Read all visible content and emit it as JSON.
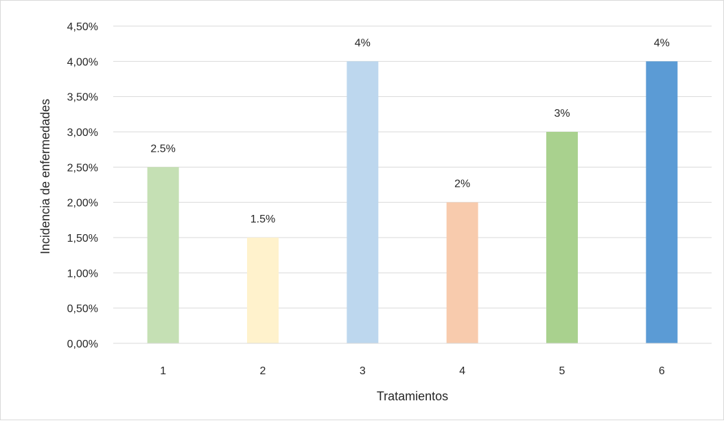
{
  "chart_data": {
    "type": "bar",
    "categories": [
      "1",
      "2",
      "3",
      "4",
      "5",
      "6"
    ],
    "values": [
      2.5,
      1.5,
      4.0,
      2.0,
      3.0,
      4.0
    ],
    "data_labels": [
      "2.5%",
      "1.5%",
      "4%",
      "2%",
      "3%",
      "4%"
    ],
    "bar_colors": [
      "#c5e0b4",
      "#fff2cc",
      "#bdd7ee",
      "#f8cbad",
      "#a9d18e",
      "#5b9bd5"
    ],
    "title": "",
    "xlabel": "Tratamientos",
    "ylabel": "Incidencia de enfermedades",
    "ylim": [
      0,
      4.5
    ],
    "yticks": [
      0,
      0.5,
      1.0,
      1.5,
      2.0,
      2.5,
      3.0,
      3.5,
      4.0,
      4.5
    ],
    "ytick_labels": [
      "0,00%",
      "0,50%",
      "1,00%",
      "1,50%",
      "2,00%",
      "2,50%",
      "3,00%",
      "3,50%",
      "4,00%",
      "4,50%"
    ],
    "grid": true,
    "legend": "none",
    "gridline_color": "#d9d9d9"
  }
}
